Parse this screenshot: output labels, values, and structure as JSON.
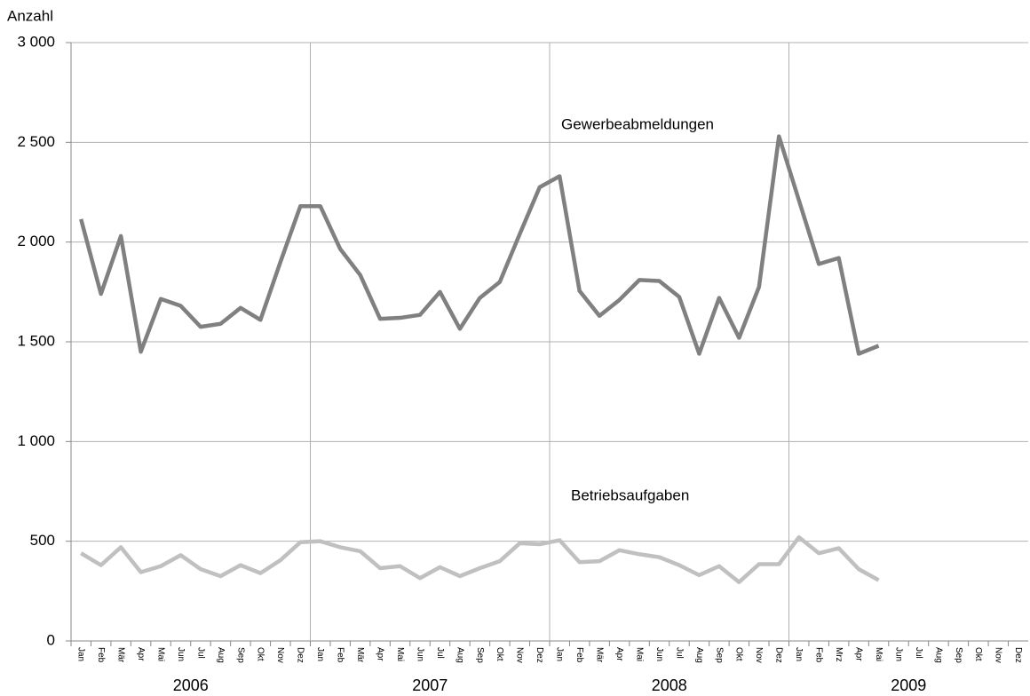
{
  "chart_data": {
    "type": "line",
    "y_label": "Anzahl",
    "categories": [
      "Jan",
      "Feb",
      "Mär",
      "Apr",
      "Mai",
      "Jun",
      "Jul",
      "Aug",
      "Sep",
      "Okt",
      "Nov",
      "Dez",
      "Jan",
      "Feb",
      "Mär",
      "Apr",
      "Mai",
      "Jun",
      "Jul",
      "Aug",
      "Sep",
      "Okt",
      "Nov",
      "Dez",
      "Jan",
      "Feb",
      "Mär",
      "Apr",
      "Mai",
      "Jun",
      "Jul",
      "Aug",
      "Sep",
      "Okt",
      "Nov",
      "Dez",
      "Jan",
      "Feb",
      "Mrz",
      "Apr",
      "Mai",
      "Jun",
      "Jul",
      "Aug",
      "Sep",
      "Okt",
      "Nov",
      "Dez"
    ],
    "years": [
      "2006",
      "2007",
      "2008",
      "2009"
    ],
    "series": [
      {
        "name": "Gewerbeabmeldungen",
        "color": "#808080",
        "values": [
          2115,
          1740,
          2030,
          1450,
          1715,
          1680,
          1575,
          1590,
          1670,
          1610,
          1900,
          2180,
          2180,
          1965,
          1835,
          1615,
          1620,
          1635,
          1750,
          1565,
          1720,
          1800,
          2040,
          2275,
          2330,
          1755,
          1630,
          1710,
          1810,
          1805,
          1725,
          1440,
          1720,
          1520,
          1775,
          2530,
          2210,
          1890,
          1920,
          1440,
          1480,
          null,
          null,
          null,
          null,
          null,
          null,
          null
        ]
      },
      {
        "name": "Betriebsaufgaben",
        "color": "#c0c0c0",
        "values": [
          440,
          380,
          470,
          345,
          375,
          430,
          360,
          325,
          380,
          340,
          405,
          495,
          500,
          470,
          450,
          365,
          375,
          315,
          370,
          325,
          365,
          400,
          490,
          485,
          505,
          395,
          400,
          455,
          435,
          420,
          380,
          330,
          375,
          295,
          385,
          385,
          520,
          440,
          465,
          360,
          305,
          null,
          null,
          null,
          null,
          null,
          null,
          null
        ]
      }
    ],
    "ylim": [
      0,
      3000
    ],
    "yticks": [
      0,
      500,
      {
        "value": 1000,
        "label": "1 000"
      },
      {
        "value": 1500,
        "label": "1 500"
      },
      {
        "value": 2000,
        "label": "2 000"
      },
      {
        "value": 2500,
        "label": "2 500"
      },
      {
        "value": 3000,
        "label": "3 000"
      }
    ],
    "grid": true
  }
}
